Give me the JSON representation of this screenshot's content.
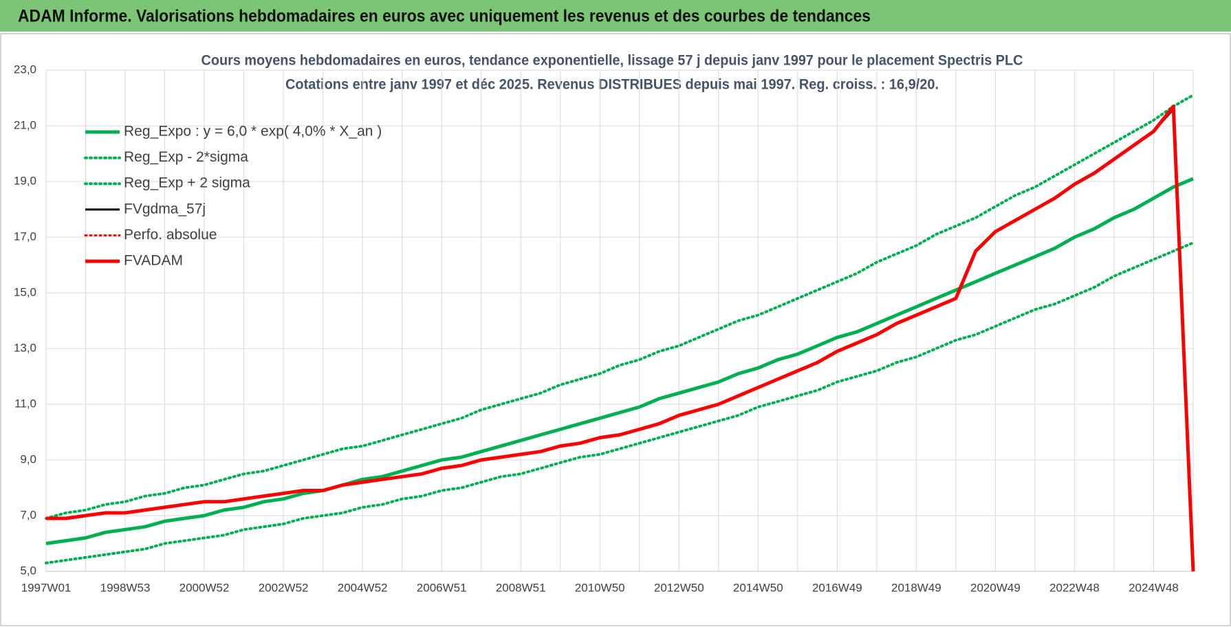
{
  "header": {
    "title": "ADAM Informe. Valorisations hebdomadaires en euros avec uniquement les revenus et des courbes de tendances"
  },
  "chart_data": {
    "type": "line",
    "title": "Cours moyens hebdomadaires en euros, tendance exponentielle, lissage 57 j depuis janv 1997  pour le placement Spectris PLC",
    "subtitle": "Cotations entre janv 1997 et déc 2025.  Revenus DISTRIBUES depuis mai 1997. Reg. croiss. : 16,9/20.",
    "categories": [
      "1997W01",
      null,
      null,
      null,
      "1998W53",
      null,
      null,
      null,
      "2000W52",
      null,
      null,
      null,
      "2002W52",
      null,
      null,
      null,
      "2004W52",
      null,
      null,
      null,
      "2006W51",
      null,
      null,
      null,
      "2008W51",
      null,
      null,
      null,
      "2010W50",
      null,
      null,
      null,
      "2012W50",
      null,
      null,
      null,
      "2014W50",
      null,
      null,
      null,
      "2016W49",
      null,
      null,
      null,
      "2018W49",
      null,
      null,
      null,
      "2020W49",
      null,
      null,
      null,
      "2022W48",
      null,
      null,
      null,
      "2024W48",
      null,
      null
    ],
    "ylim": [
      5,
      23
    ],
    "yticks": [
      {
        "value": 5,
        "label": "5,0"
      },
      {
        "value": 7,
        "label": "7,0"
      },
      {
        "value": 9,
        "label": "9,0"
      },
      {
        "value": 11,
        "label": "11,0"
      },
      {
        "value": 13,
        "label": "13,0"
      },
      {
        "value": 15,
        "label": "15,0"
      },
      {
        "value": 17,
        "label": "17,0"
      },
      {
        "value": 19,
        "label": "19,0"
      },
      {
        "value": 21,
        "label": "21,0"
      },
      {
        "value": 23,
        "label": "23,0"
      }
    ],
    "grid": true,
    "legend": "top-left",
    "series": [
      {
        "name": "Reg_Expo : y = 6,0 * exp( 4,0% *  X_an )",
        "color": "#00b050",
        "style": "solid",
        "width": 5,
        "values": [
          6.0,
          6.1,
          6.2,
          6.4,
          6.5,
          6.6,
          6.8,
          6.9,
          7.0,
          7.2,
          7.3,
          7.5,
          7.6,
          7.8,
          7.9,
          8.1,
          8.3,
          8.4,
          8.6,
          8.8,
          9.0,
          9.1,
          9.3,
          9.5,
          9.7,
          9.9,
          10.1,
          10.3,
          10.5,
          10.7,
          10.9,
          11.2,
          11.4,
          11.6,
          11.8,
          12.1,
          12.3,
          12.6,
          12.8,
          13.1,
          13.4,
          13.6,
          13.9,
          14.2,
          14.5,
          14.8,
          15.1,
          15.4,
          15.7,
          16.0,
          16.3,
          16.6,
          17.0,
          17.3,
          17.7,
          18.0,
          18.4,
          18.8,
          19.1
        ]
      },
      {
        "name": "Reg_Exp - 2*sigma",
        "color": "#00b050",
        "style": "dotted",
        "width": 4,
        "values": [
          5.3,
          5.4,
          5.5,
          5.6,
          5.7,
          5.8,
          6.0,
          6.1,
          6.2,
          6.3,
          6.5,
          6.6,
          6.7,
          6.9,
          7.0,
          7.1,
          7.3,
          7.4,
          7.6,
          7.7,
          7.9,
          8.0,
          8.2,
          8.4,
          8.5,
          8.7,
          8.9,
          9.1,
          9.2,
          9.4,
          9.6,
          9.8,
          10.0,
          10.2,
          10.4,
          10.6,
          10.9,
          11.1,
          11.3,
          11.5,
          11.8,
          12.0,
          12.2,
          12.5,
          12.7,
          13.0,
          13.3,
          13.5,
          13.8,
          14.1,
          14.4,
          14.6,
          14.9,
          15.2,
          15.6,
          15.9,
          16.2,
          16.5,
          16.8
        ]
      },
      {
        "name": "Reg_Exp + 2 sigma",
        "color": "#00b050",
        "style": "dotted",
        "width": 4,
        "values": [
          6.9,
          7.1,
          7.2,
          7.4,
          7.5,
          7.7,
          7.8,
          8.0,
          8.1,
          8.3,
          8.5,
          8.6,
          8.8,
          9.0,
          9.2,
          9.4,
          9.5,
          9.7,
          9.9,
          10.1,
          10.3,
          10.5,
          10.8,
          11.0,
          11.2,
          11.4,
          11.7,
          11.9,
          12.1,
          12.4,
          12.6,
          12.9,
          13.1,
          13.4,
          13.7,
          14.0,
          14.2,
          14.5,
          14.8,
          15.1,
          15.4,
          15.7,
          16.1,
          16.4,
          16.7,
          17.1,
          17.4,
          17.7,
          18.1,
          18.5,
          18.8,
          19.2,
          19.6,
          20.0,
          20.4,
          20.8,
          21.2,
          21.7,
          22.1
        ]
      },
      {
        "name": "FVgdma_57j",
        "color": "#000000",
        "style": "solid",
        "width": 3,
        "values": [
          6.9,
          6.9,
          7.0,
          7.1,
          7.1,
          7.2,
          7.3,
          7.4,
          7.5,
          7.5,
          7.6,
          7.7,
          7.8,
          7.9,
          7.9,
          8.1,
          8.2,
          8.3,
          8.4,
          8.5,
          8.7,
          8.8,
          9.0,
          9.1,
          9.2,
          9.3,
          9.5,
          9.6,
          9.8,
          9.9,
          10.1,
          10.3,
          10.6,
          10.8,
          11.0,
          11.3,
          11.6,
          11.9,
          12.2,
          12.5,
          12.9,
          13.2,
          13.5,
          13.9,
          14.2,
          14.5,
          14.8,
          16.5,
          17.2,
          17.6,
          18.0,
          18.4,
          18.9,
          19.3,
          19.8,
          20.3,
          20.8,
          21.6,
          null
        ]
      },
      {
        "name": "Perfo. absolue",
        "color": "#ff0000",
        "style": "dotted",
        "width": 3,
        "values": [
          null,
          null,
          null,
          null,
          null,
          null,
          null,
          null,
          null,
          null,
          null,
          null,
          null,
          null,
          null,
          null,
          null,
          null,
          null,
          null,
          null,
          null,
          null,
          null,
          null,
          null,
          null,
          null,
          null,
          null,
          null,
          null,
          null,
          null,
          null,
          null,
          null,
          null,
          null,
          null,
          null,
          null,
          null,
          null,
          null,
          null,
          null,
          null,
          null,
          null,
          null,
          null,
          null,
          null,
          null,
          null,
          null,
          null,
          null
        ]
      },
      {
        "name": "FVADAM",
        "color": "#ff0000",
        "style": "solid",
        "width": 5,
        "values": [
          6.9,
          6.9,
          7.0,
          7.1,
          7.1,
          7.2,
          7.3,
          7.4,
          7.5,
          7.5,
          7.6,
          7.7,
          7.8,
          7.9,
          7.9,
          8.1,
          8.2,
          8.3,
          8.4,
          8.5,
          8.7,
          8.8,
          9.0,
          9.1,
          9.2,
          9.3,
          9.5,
          9.6,
          9.8,
          9.9,
          10.1,
          10.3,
          10.6,
          10.8,
          11.0,
          11.3,
          11.6,
          11.9,
          12.2,
          12.5,
          12.9,
          13.2,
          13.5,
          13.9,
          14.2,
          14.5,
          14.8,
          16.5,
          17.2,
          17.6,
          18.0,
          18.4,
          18.9,
          19.3,
          19.8,
          20.3,
          20.8,
          21.7,
          5.0
        ]
      }
    ]
  }
}
